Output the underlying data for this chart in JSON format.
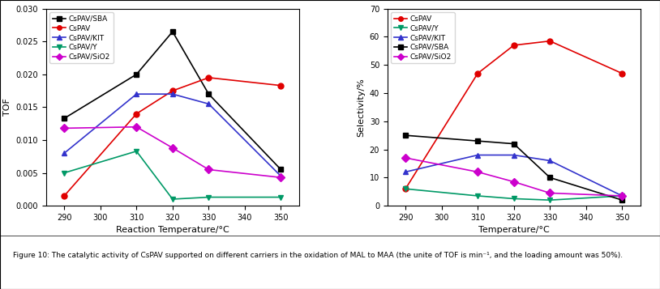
{
  "temps": [
    290,
    310,
    320,
    330,
    350
  ],
  "tof": {
    "CsPAV/SBA": [
      0.0133,
      0.02,
      0.0265,
      0.017,
      0.0055
    ],
    "CsPAV": [
      0.0015,
      0.014,
      0.0175,
      0.0195,
      0.0183
    ],
    "CsPAV/KIT": [
      0.008,
      0.017,
      0.017,
      0.0155,
      0.0045
    ],
    "CsPAV/Y": [
      0.005,
      0.0083,
      0.001,
      0.0013,
      0.0013
    ],
    "CsPAV/SiO2": [
      0.0118,
      0.012,
      0.0088,
      0.0055,
      0.0043
    ]
  },
  "sel": {
    "CsPAV": [
      6.0,
      47.0,
      57.0,
      58.5,
      47.0
    ],
    "CsPAV/Y": [
      6.0,
      3.5,
      2.5,
      2.0,
      3.5
    ],
    "CsPAV/KIT": [
      12.0,
      18.0,
      18.0,
      16.0,
      3.5
    ],
    "CsPAV/SBA": [
      25.0,
      23.0,
      22.0,
      10.0,
      2.0
    ],
    "CsPAV/SiO2": [
      17.0,
      12.0,
      8.5,
      4.5,
      3.5
    ]
  },
  "tof_colors": {
    "CsPAV/SBA": "#000000",
    "CsPAV": "#e00000",
    "CsPAV/KIT": "#3333cc",
    "CsPAV/Y": "#009966",
    "CsPAV/SiO2": "#cc00cc"
  },
  "sel_colors": {
    "CsPAV": "#e00000",
    "CsPAV/Y": "#009966",
    "CsPAV/KIT": "#3333cc",
    "CsPAV/SBA": "#000000",
    "CsPAV/SiO2": "#cc00cc"
  },
  "tof_markers": {
    "CsPAV/SBA": "s",
    "CsPAV": "o",
    "CsPAV/KIT": "^",
    "CsPAV/Y": "v",
    "CsPAV/SiO2": "D"
  },
  "sel_markers": {
    "CsPAV": "o",
    "CsPAV/Y": "v",
    "CsPAV/KIT": "^",
    "CsPAV/SBA": "s",
    "CsPAV/SiO2": "D"
  },
  "xlabel_left": "Reaction Temperature/°C",
  "xlabel_right": "Temperature/°C",
  "ylabel_left": "TOF",
  "ylabel_right": "Selectivity/%",
  "ylim_left": [
    0.0,
    0.03
  ],
  "ylim_right": [
    0,
    70
  ],
  "yticks_left": [
    0.0,
    0.005,
    0.01,
    0.015,
    0.02,
    0.025,
    0.03
  ],
  "yticks_right": [
    0,
    10,
    20,
    30,
    40,
    50,
    60,
    70
  ],
  "xticks": [
    290,
    300,
    310,
    320,
    330,
    340,
    350
  ],
  "caption": "Figure 10: The catalytic activity of CsPAV supported on different carriers in the oxidation of MAL to MAA (the unite of TOF is min⁻¹, and the loading amount was 50%)."
}
